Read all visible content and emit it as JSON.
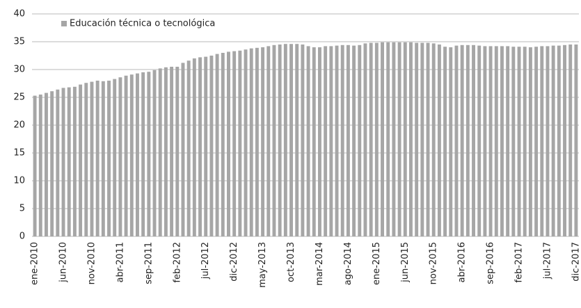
{
  "chart_data": {
    "type": "bar",
    "categories": [
      "ene-2010",
      null,
      null,
      null,
      null,
      "jun-2010",
      null,
      null,
      null,
      null,
      "nov-2010",
      null,
      null,
      null,
      null,
      "abr-2011",
      null,
      null,
      null,
      null,
      "sep-2011",
      null,
      null,
      null,
      null,
      "feb-2012",
      null,
      null,
      null,
      null,
      "jul-2012",
      null,
      null,
      null,
      null,
      "dic-2012",
      null,
      null,
      null,
      null,
      "may-2013",
      null,
      null,
      null,
      null,
      "oct-2013",
      null,
      null,
      null,
      null,
      "mar-2014",
      null,
      null,
      null,
      null,
      "ago-2014",
      null,
      null,
      null,
      null,
      "ene-2015",
      null,
      null,
      null,
      null,
      "jun-2015",
      null,
      null,
      null,
      null,
      "nov-2015",
      null,
      null,
      null,
      null,
      "abr-2016",
      null,
      null,
      null,
      null,
      "sep-2016",
      null,
      null,
      null,
      null,
      "feb-2017",
      null,
      null,
      null,
      null,
      "jul-2017",
      null,
      null,
      null,
      null,
      "dic-2017"
    ],
    "series": [
      {
        "name": "Educación técnica o tecnológica",
        "color": "#a6a6a6",
        "values": [
          25.3,
          25.5,
          25.8,
          26.1,
          26.4,
          26.7,
          26.8,
          26.9,
          27.3,
          27.6,
          27.8,
          28.0,
          27.9,
          28.0,
          28.3,
          28.6,
          28.9,
          29.1,
          29.3,
          29.5,
          29.6,
          29.9,
          30.2,
          30.4,
          30.5,
          30.5,
          31.2,
          31.6,
          32.0,
          32.2,
          32.3,
          32.5,
          32.8,
          33.0,
          33.2,
          33.3,
          33.4,
          33.6,
          33.8,
          33.9,
          34.0,
          34.2,
          34.4,
          34.5,
          34.6,
          34.6,
          34.6,
          34.5,
          34.2,
          34.0,
          34.0,
          34.2,
          34.2,
          34.3,
          34.4,
          34.4,
          34.3,
          34.4,
          34.7,
          34.8,
          34.8,
          34.9,
          34.9,
          34.9,
          34.9,
          34.9,
          34.9,
          34.8,
          34.8,
          34.8,
          34.7,
          34.5,
          34.1,
          34.0,
          34.3,
          34.4,
          34.4,
          34.4,
          34.3,
          34.2,
          34.2,
          34.2,
          34.2,
          34.2,
          34.1,
          34.1,
          34.1,
          34.0,
          34.1,
          34.2,
          34.2,
          34.3,
          34.3,
          34.4,
          34.5,
          34.5
        ]
      }
    ],
    "ylim": [
      0,
      40
    ],
    "yticks": [
      0,
      5,
      10,
      15,
      20,
      25,
      30,
      35,
      40
    ],
    "grid": true,
    "legend": "upper left"
  }
}
